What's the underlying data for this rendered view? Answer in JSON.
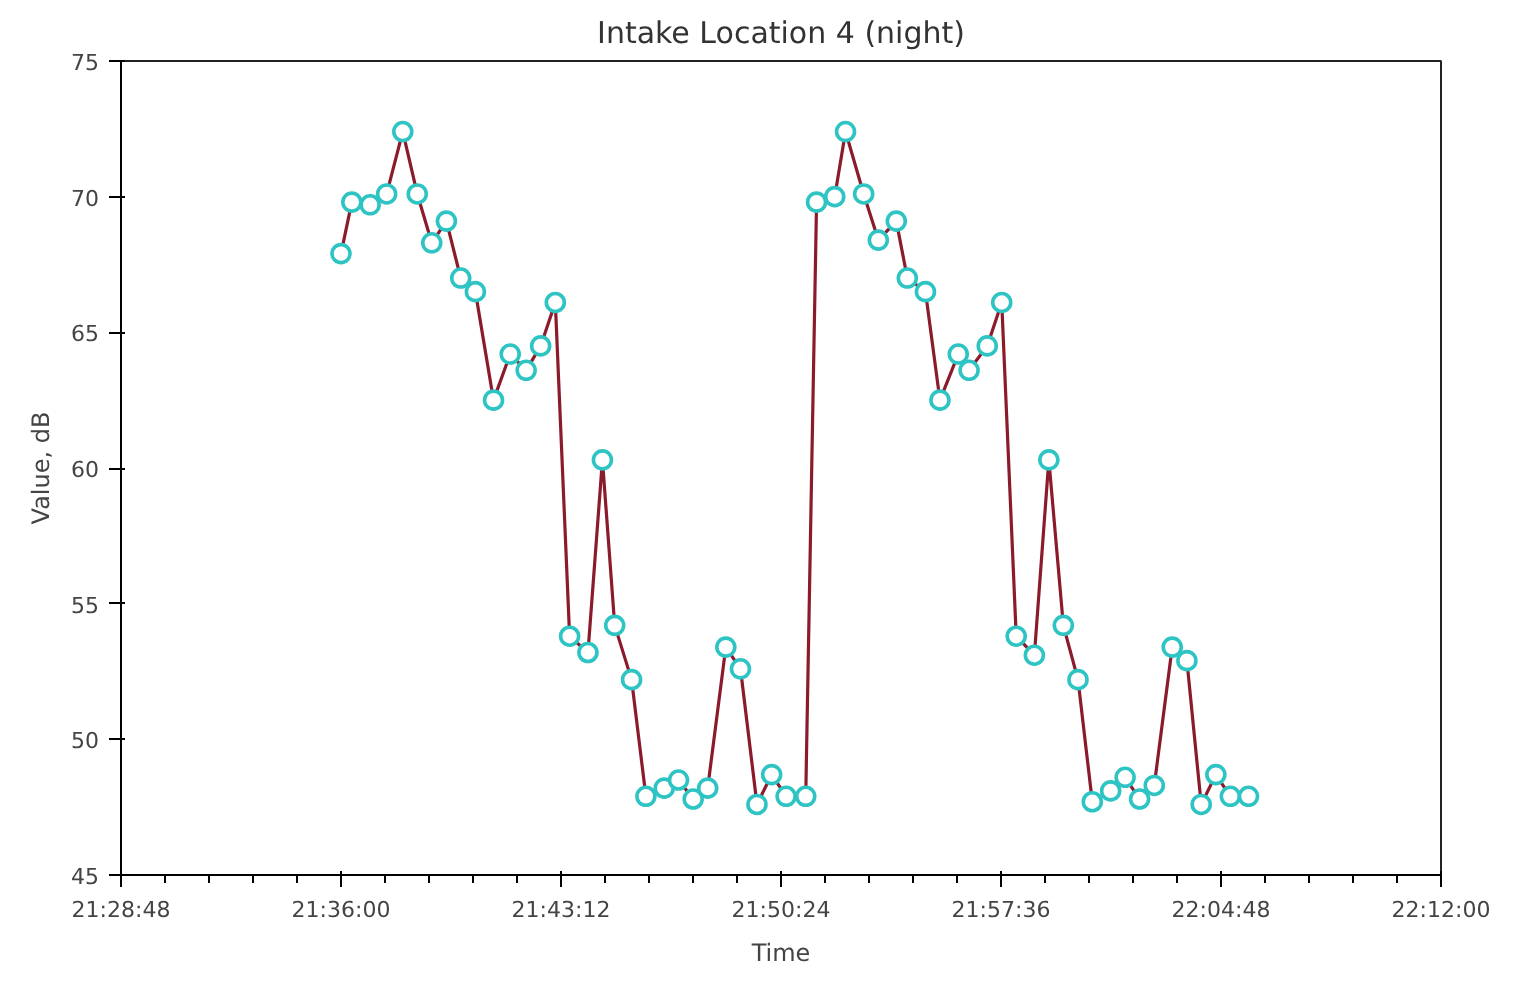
{
  "chart_data": {
    "type": "line",
    "title": "Intake Location 4 (night)",
    "xlabel": "Time",
    "ylabel": "Value, dB",
    "x": [
      21.6,
      21.6059,
      21.6159,
      21.6249,
      21.6337,
      21.6416,
      21.6495,
      21.6575,
      21.6653,
      21.6733,
      21.6832,
      21.6923,
      21.701,
      21.7089,
      21.7169,
      21.7247,
      21.7347,
      21.7426,
      21.7493,
      21.7585,
      21.7663,
      21.7763,
      21.7841,
      21.7921,
      21.8,
      21.8099,
      21.8179,
      21.8269,
      21.8349,
      21.8428,
      21.8535,
      21.8594,
      21.8693,
      21.8752,
      21.8851,
      21.8931,
      21.9029,
      21.9089,
      21.9188,
      21.9267,
      21.9367,
      21.9426,
      21.9525,
      21.9604,
      21.9683,
      21.9782,
      21.9861,
      21.994,
      22.002,
      22.0098,
      22.0198,
      22.0277,
      22.0356,
      22.0436,
      22.0534,
      22.0614,
      22.0692,
      22.0772,
      22.0851,
      22.095
    ],
    "series": [
      {
        "color": "#8b1a2b",
        "values": [
          67.9,
          69.8,
          69.7,
          70.1,
          72.4,
          70.1,
          68.3,
          69.1,
          67.0,
          66.5,
          62.5,
          64.2,
          63.6,
          64.5,
          66.1,
          53.8,
          53.2,
          60.3,
          54.2,
          52.2,
          47.9,
          48.2,
          48.5,
          47.8,
          48.2,
          53.4,
          52.6,
          47.6,
          48.7,
          47.9,
          47.9,
          69.8,
          70.0,
          72.4,
          70.1,
          68.4,
          69.1,
          67.0,
          66.5,
          62.5,
          64.2,
          63.6,
          64.5,
          66.1,
          53.8,
          53.1,
          60.3,
          54.2,
          52.2,
          47.7,
          48.1,
          48.6,
          47.8,
          48.3,
          53.4,
          52.9,
          47.6,
          48.7,
          47.9,
          47.9
        ]
      }
    ],
    "marker": "circle",
    "line_style": "solid",
    "grid": false,
    "xlim": [
      21.48,
      22.2
    ],
    "xticks": [
      {
        "value": 21.48,
        "label": "21:28:48"
      },
      {
        "value": 21.6,
        "label": "21:36:00"
      },
      {
        "value": 21.72,
        "label": "21:43:12"
      },
      {
        "value": 21.84,
        "label": "21:50:24"
      },
      {
        "value": 21.96,
        "label": "21:57:36"
      },
      {
        "value": 22.08,
        "label": "22:04:48"
      },
      {
        "value": 22.2,
        "label": "22:12:00"
      }
    ],
    "ylim": [
      45,
      75
    ],
    "yticks": [
      45,
      50,
      55,
      60,
      65,
      70,
      75
    ]
  }
}
